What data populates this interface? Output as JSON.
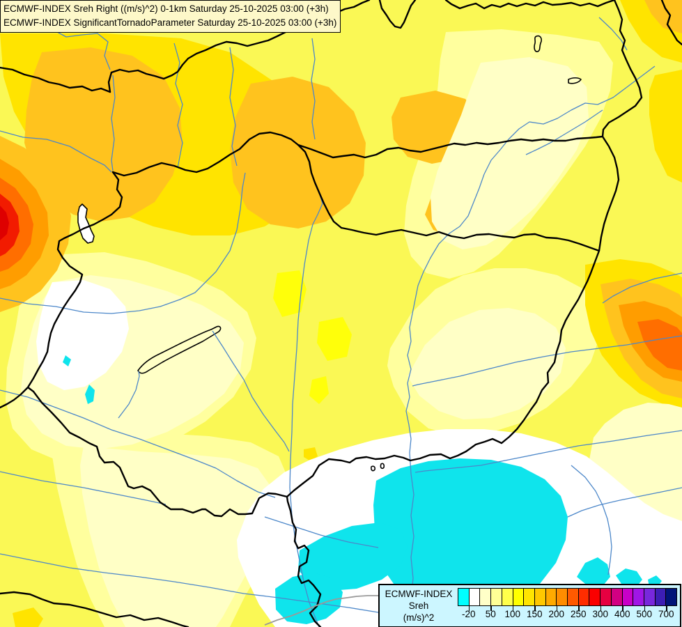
{
  "titles": {
    "line1": "ECMWF-INDEX Sreh Right ((m/s)^2) 0-1km Saturday 25-10-2025 03:00 (+3h)",
    "line2": "ECMWF-INDEX SignificantTornadoParameter Saturday 25-10-2025 03:00 (+3h)"
  },
  "legend": {
    "label_line1": "ECMWF-INDEX",
    "label_line2": "Sreh",
    "label_line3": "(m/s)^2",
    "tick_values": [
      "-20",
      "50",
      "100",
      "150",
      "200",
      "250",
      "300",
      "400",
      "500",
      "700"
    ],
    "colors": [
      "#00ffff",
      "#ffffff",
      "#ffffc8",
      "#ffff96",
      "#ffff4b",
      "#ffff00",
      "#ffe400",
      "#ffc800",
      "#ffaa00",
      "#ff8c00",
      "#ff5a00",
      "#ff2d00",
      "#fa0000",
      "#e60041",
      "#d20082",
      "#c800c8",
      "#a016e6",
      "#7828dc",
      "#3c1eb4",
      "#001478"
    ],
    "background": "#ccf6ff"
  },
  "map": {
    "palette": {
      "base_yellow": "#faf855",
      "bright_yellow": "#ffff0a",
      "pale_yellow": "#ffff9e",
      "cream": "#ffffc6",
      "white": "#ffffff",
      "cyan": "#0fe4ec",
      "gold": "#ffe400",
      "amber": "#ffc31e",
      "orange": "#ff9d00",
      "deep_orange": "#ff6e00",
      "red": "#f21b00",
      "deep_red": "#de0000",
      "river_blue": "#4c87c9",
      "border_black": "#000000",
      "border_grey": "#9a9a9a"
    }
  }
}
